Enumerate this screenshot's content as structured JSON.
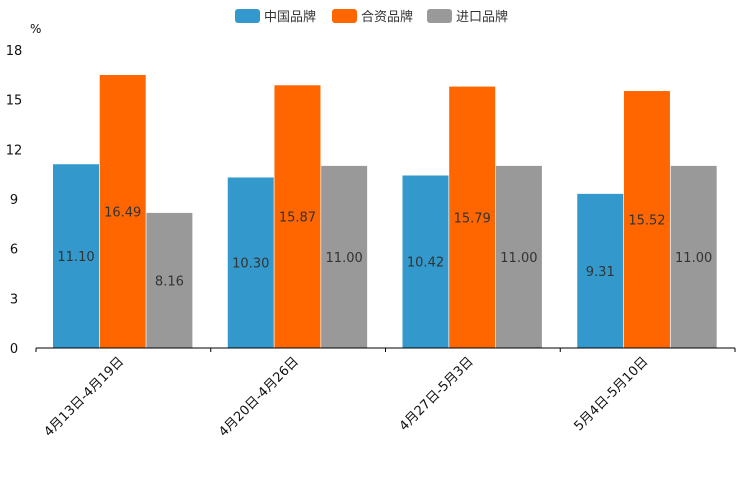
{
  "chart_data": {
    "type": "bar",
    "y_unit": "%",
    "categories": [
      "4月13日-4月19日",
      "4月20日-4月26日",
      "4月27日-5月3日",
      "5月4日-5月10日"
    ],
    "series": [
      {
        "name": "中国品牌",
        "color": "#3399cc",
        "values": [
          11.1,
          10.3,
          10.42,
          9.31
        ],
        "labels": [
          "11.10",
          "10.30",
          "10.42",
          "9.31"
        ]
      },
      {
        "name": "合资品牌",
        "color": "#ff6600",
        "values": [
          16.49,
          15.87,
          15.79,
          15.52
        ],
        "labels": [
          "16.49",
          "15.87",
          "15.79",
          "15.52"
        ]
      },
      {
        "name": "进口品牌",
        "color": "#999999",
        "values": [
          8.16,
          11.0,
          11.0,
          11.0
        ],
        "labels": [
          "8.16",
          "11.00",
          "11.00",
          "11.00"
        ]
      }
    ],
    "ylim": [
      0,
      18
    ],
    "yticks": [
      0,
      3,
      6,
      9,
      12,
      15,
      18
    ],
    "ytick_labels": [
      "0",
      "3",
      "6",
      "9",
      "12",
      "15",
      "18"
    ],
    "grid": false,
    "legend_position": "top-center"
  }
}
